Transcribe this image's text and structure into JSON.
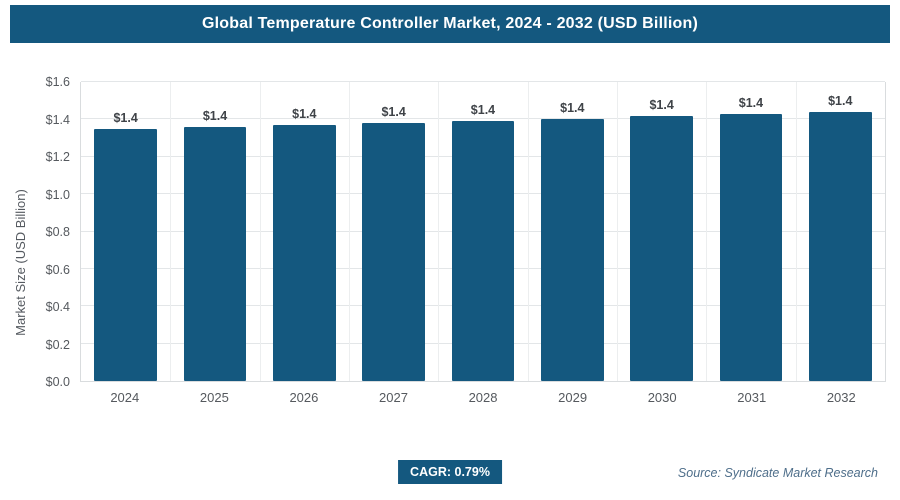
{
  "header": {
    "title": "Global Temperature Controller Market, 2024 - 2032 (USD Billion)"
  },
  "colors": {
    "brand_blue": "#14587f",
    "bar_fill": "#14587f"
  },
  "chart_data": {
    "type": "bar",
    "title": "Global Temperature Controller Market, 2024 - 2032 (USD Billion)",
    "categories": [
      "2024",
      "2025",
      "2026",
      "2027",
      "2028",
      "2029",
      "2030",
      "2031",
      "2032"
    ],
    "values": [
      1.35,
      1.36,
      1.37,
      1.38,
      1.39,
      1.4,
      1.42,
      1.43,
      1.44
    ],
    "bar_labels": [
      "$1.4",
      "$1.4",
      "$1.4",
      "$1.4",
      "$1.4",
      "$1.4",
      "$1.4",
      "$1.4",
      "$1.4"
    ],
    "xlabel": "",
    "ylabel": "Market Size (USD Billion)",
    "ylim": [
      0,
      1.6
    ],
    "ytick_step": 0.2,
    "ytick_labels": [
      "$0.0",
      "$0.2",
      "$0.4",
      "$0.6",
      "$0.8",
      "$1.0",
      "$1.2",
      "$1.4",
      "$1.6"
    ],
    "grid": true,
    "legend_position": "none"
  },
  "footer": {
    "cagr_label": "CAGR: 0.79%",
    "source": "Source: Syndicate Market Research"
  }
}
